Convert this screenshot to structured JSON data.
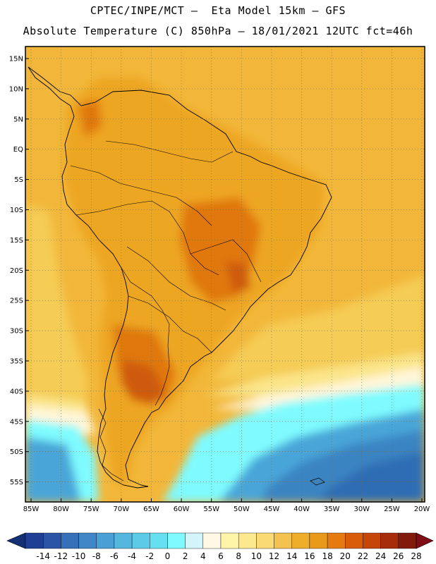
{
  "title": {
    "line1": "CPTEC/INPE/MCT –  Eta Model 15km – GFS",
    "line2": "Absolute Temperature (C) 850hPa – 18/01/2021 12UTC fct=46h"
  },
  "map": {
    "lat_labels": [
      "15N",
      "10N",
      "5N",
      "EQ",
      "5S",
      "10S",
      "15S",
      "20S",
      "25S",
      "30S",
      "35S",
      "40S",
      "45S",
      "50S",
      "55S"
    ],
    "lon_labels": [
      "85W",
      "80W",
      "75W",
      "70W",
      "65W",
      "60W",
      "55W",
      "50W",
      "45W",
      "40W",
      "35W",
      "30W",
      "25W",
      "20W"
    ],
    "lat_range": [
      15,
      -57.5
    ],
    "lon_range": [
      -85,
      -20
    ],
    "gridlines": true,
    "grid_style": "dotted"
  },
  "colorbar": {
    "ticks": [
      "-14",
      "-12",
      "-10",
      "-8",
      "-6",
      "-4",
      "-2",
      "0",
      "2",
      "4",
      "6",
      "8",
      "10",
      "12",
      "14",
      "16",
      "18",
      "20",
      "22",
      "24",
      "26",
      "28"
    ],
    "colors": [
      "#1f3f94",
      "#2a55a6",
      "#3570b8",
      "#3f87c6",
      "#4aa0d4",
      "#55b6de",
      "#5ccbe8",
      "#66e0f0",
      "#7ffbff",
      "#d2f4fb",
      "#fff8e5",
      "#fff5a8",
      "#fce98e",
      "#f9da74",
      "#f4c24e",
      "#efae2a",
      "#ea9a1a",
      "#e57b10",
      "#d85c09",
      "#c64508",
      "#a72c09",
      "#821c0a"
    ],
    "under_color": "#143075",
    "over_color": "#7d0e16"
  },
  "map_fills": {
    "ocean_warm": "#f2b73a",
    "land_warm": "#eda623",
    "hot_core": "#e07810",
    "hottest": "#cf5a0a",
    "subtropical": "#f5cc55",
    "mild": "#fbe58a",
    "pale": "#fff6d9",
    "cool": "#7ffbff",
    "cold": "#4aa5d8",
    "colder": "#3a84c2",
    "coldest": "#2f6db4"
  }
}
